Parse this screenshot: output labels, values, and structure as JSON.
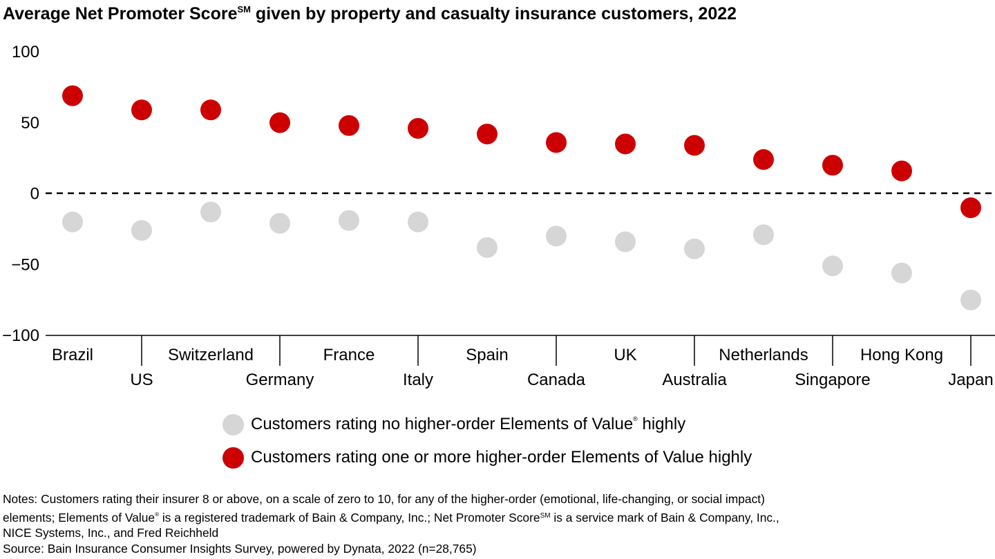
{
  "title": {
    "prefix": "Average Net Promoter Score",
    "mark": "SM",
    "suffix": " given by property and casualty insurance customers, 2022"
  },
  "chart_data": {
    "type": "scatter",
    "categories": [
      "Brazil",
      "US",
      "Switzerland",
      "Germany",
      "France",
      "Italy",
      "Spain",
      "Canada",
      "UK",
      "Australia",
      "Netherlands",
      "Singapore",
      "Hong Kong",
      "Japan"
    ],
    "series": [
      {
        "name": "Customers rating one or more higher-order Elements of Value highly",
        "color": "#cc0000",
        "values": [
          69,
          59,
          59,
          50,
          48,
          46,
          42,
          36,
          35,
          34,
          24,
          20,
          16,
          -10
        ]
      },
      {
        "name": "Customers rating no higher-order Elements of Value highly",
        "color": "#d6d6d6",
        "values": [
          -20,
          -26,
          -13,
          -21,
          -19,
          -20,
          -38,
          -30,
          -34,
          -39,
          -29,
          -51,
          -56,
          -75
        ]
      }
    ],
    "yticks": [
      100,
      50,
      0,
      -50,
      -100
    ],
    "ytick_labels": [
      "100",
      "50",
      "0",
      "−50",
      "−100"
    ],
    "ylim": [
      -100,
      100
    ],
    "zero_line": "dashed",
    "grid": false,
    "legend_position": "bottom"
  },
  "legend": {
    "gray": {
      "label": "Customers rating no higher-order Elements of Value",
      "mark": "®",
      "suffix": " highly",
      "color": "#d6d6d6"
    },
    "red": {
      "label": "Customers rating one or more higher-order Elements of Value highly",
      "color": "#cc0000"
    }
  },
  "notes": {
    "line1": "Notes: Customers rating their insurer 8 or above, on a scale of zero to 10, for any of the higher-order (emotional, life-changing, or social impact)",
    "line2a": "elements; Elements of Value",
    "line2_mark": "®",
    "line2b": " is a registered trademark of Bain & Company, Inc.; Net Promoter Score",
    "line2_sm": "SM",
    "line2c": " is a service mark of Bain & Company, Inc.,",
    "line3": "NICE Systems, Inc., and Fred Reichheld",
    "source": "Source: Bain Insurance Consumer Insights Survey, powered by Dynata, 2022 (n=28,765)"
  }
}
